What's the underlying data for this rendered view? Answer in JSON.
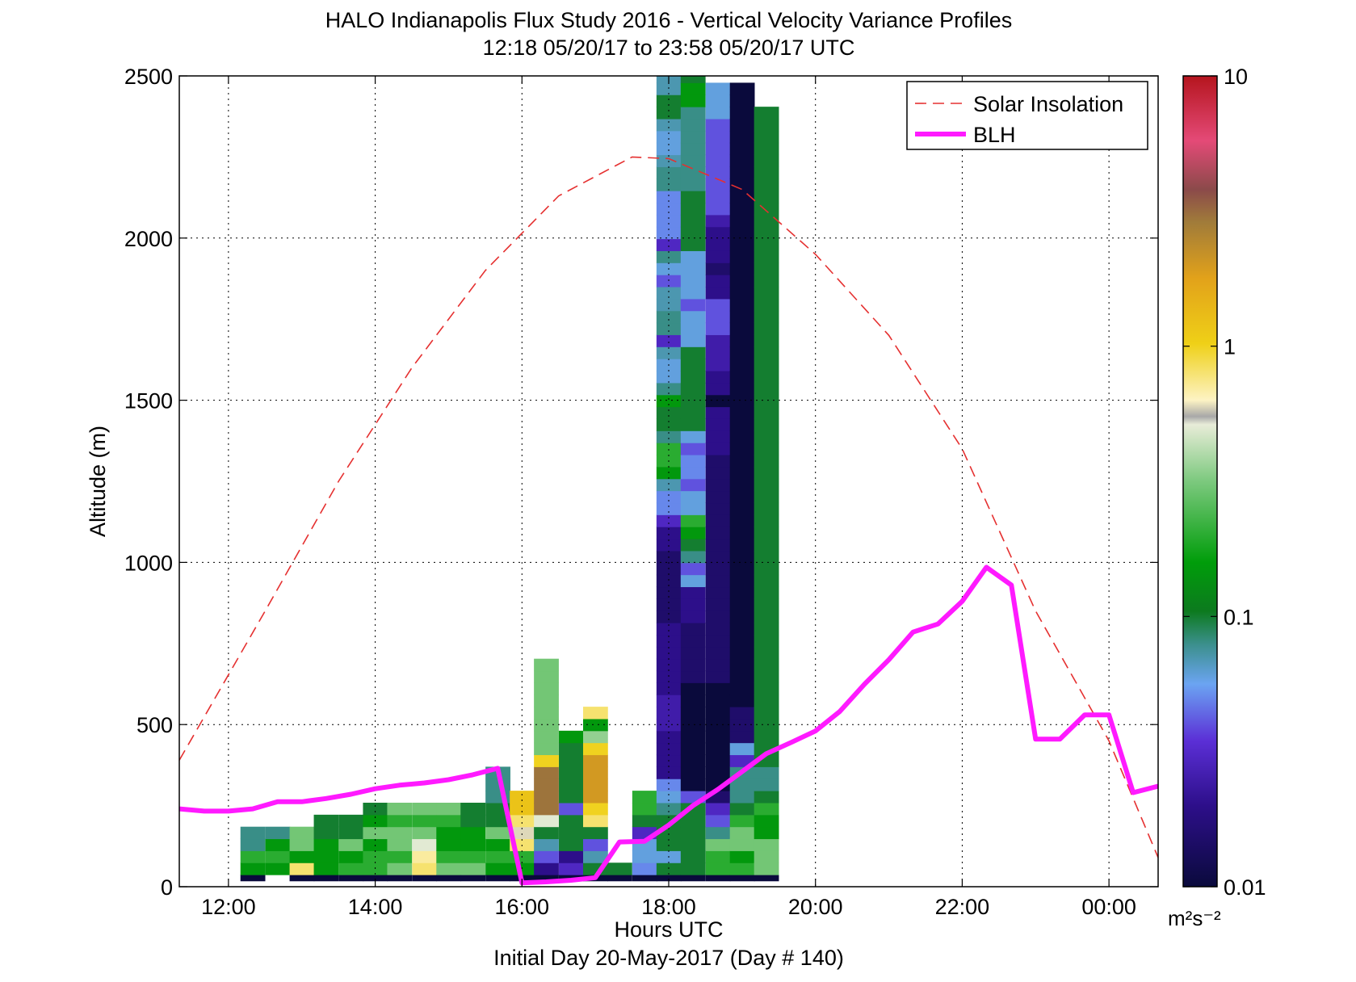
{
  "title_line1": "HALO Indianapolis Flux Study 2016 - Vertical Velocity Variance Profiles",
  "title_line2": "12:18 05/20/17 to 23:58 05/20/17  UTC",
  "xlabel": "Hours UTC",
  "xlabel2": "Initial Day 20-May-2017 (Day # 140)",
  "ylabel": "Altitude (m)",
  "colorbar_unit": "m²s⁻²",
  "legend": {
    "solar": "Solar Insolation",
    "blh": "BLH"
  },
  "chart_data": {
    "type": "heatmap",
    "x_range_hours": [
      11.33,
      24.67
    ],
    "y_range_m": [
      0,
      2500
    ],
    "x_ticks": [
      {
        "v": 12,
        "label": "12:00"
      },
      {
        "v": 14,
        "label": "14:00"
      },
      {
        "v": 16,
        "label": "16:00"
      },
      {
        "v": 18,
        "label": "18:00"
      },
      {
        "v": 20,
        "label": "20:00"
      },
      {
        "v": 22,
        "label": "22:00"
      },
      {
        "v": 24,
        "label": "00:00"
      }
    ],
    "y_ticks": [
      {
        "v": 0,
        "label": "0"
      },
      {
        "v": 500,
        "label": "500"
      },
      {
        "v": 1000,
        "label": "1000"
      },
      {
        "v": 1500,
        "label": "1500"
      },
      {
        "v": 2000,
        "label": "2000"
      },
      {
        "v": 2500,
        "label": "2500"
      }
    ],
    "grid": true,
    "legend_position": "top-right",
    "colorbar": {
      "scale": "log",
      "min": 0.01,
      "max": 10,
      "ticks": [
        {
          "v": 0.01,
          "label": "0.01"
        },
        {
          "v": 0.1,
          "label": "0.1"
        },
        {
          "v": 1,
          "label": "1"
        },
        {
          "v": 10,
          "label": "10"
        }
      ]
    },
    "variance_columns": [
      {
        "t": 12.33,
        "v": [
          0.01,
          0.15,
          0.2,
          0.08,
          0.08
        ]
      },
      {
        "t": 12.67,
        "v": [
          null,
          0.15,
          0.2,
          0.15,
          0.08
        ]
      },
      {
        "t": 13.0,
        "v": [
          0.01,
          0.8,
          0.15,
          0.3,
          0.3
        ]
      },
      {
        "t": 13.33,
        "v": [
          0.01,
          0.15,
          0.15,
          0.15,
          0.1,
          0.1
        ]
      },
      {
        "t": 13.67,
        "v": [
          0.01,
          0.2,
          0.15,
          0.3,
          0.1,
          0.1
        ]
      },
      {
        "t": 14.0,
        "v": [
          0.01,
          0.2,
          0.2,
          0.15,
          0.3,
          0.15,
          0.1
        ]
      },
      {
        "t": 14.33,
        "v": [
          0.01,
          0.3,
          0.2,
          0.3,
          0.3,
          0.2,
          0.3
        ]
      },
      {
        "t": 14.67,
        "v": [
          0.01,
          0.8,
          0.7,
          0.5,
          0.3,
          0.2,
          0.3
        ]
      },
      {
        "t": 15.0,
        "v": [
          0.01,
          0.3,
          0.2,
          0.15,
          0.15,
          0.2,
          0.3
        ]
      },
      {
        "t": 15.33,
        "v": [
          0.01,
          0.3,
          0.2,
          0.15,
          0.15,
          0.1,
          0.1
        ]
      },
      {
        "t": 15.67,
        "v": [
          0.01,
          0.15,
          0.2,
          0.15,
          0.3,
          0.1,
          0.1,
          0.08,
          0.08,
          0.08
        ]
      },
      {
        "t": 16.0,
        "v": [
          0.01,
          0.15,
          0.2,
          0.8,
          0.6,
          0.8,
          1.2,
          1.2
        ]
      },
      {
        "t": 16.33,
        "v": [
          0.01,
          0.02,
          0.04,
          0.07,
          0.1,
          0.5,
          3,
          3,
          3,
          3,
          1,
          0.3,
          0.3,
          0.3,
          0.3,
          0.3,
          0.3,
          0.3,
          0.3
        ]
      },
      {
        "t": 16.67,
        "v": [
          0.01,
          0.03,
          0.02,
          0.1,
          0.1,
          0.1,
          0.04,
          0.1,
          0.1,
          0.1,
          0.1,
          0.1,
          0.15
        ]
      },
      {
        "t": 17.0,
        "v": [
          0.01,
          0.1,
          0.07,
          0.04,
          0.1,
          0.8,
          1,
          2,
          2,
          2,
          2,
          1,
          0.35,
          0.15,
          0.8
        ]
      },
      {
        "t": 17.33,
        "v": [
          0.01,
          0.1
        ]
      },
      {
        "t": 17.67,
        "v": [
          0.01,
          0.05,
          0.06,
          0.06,
          0.03,
          0.1,
          0.2,
          0.2
        ]
      },
      {
        "t": 18.0,
        "v": [
          0.01,
          0.1,
          0.06,
          0.1,
          0.1,
          0.1,
          0.08,
          0.06,
          0.05,
          0.02,
          0.02,
          0.02,
          0.02,
          0.025,
          0.025,
          0.025,
          0.02,
          0.02,
          0.02,
          0.02,
          0.02,
          0.02,
          0.015,
          0.015,
          0.015,
          0.015,
          0.015,
          0.015,
          0.02,
          0.02,
          0.03,
          0.05,
          0.05,
          0.07,
          0.15,
          0.2,
          0.2,
          0.08,
          0.1,
          0.1,
          0.15,
          0.08,
          0.06,
          0.06,
          0.07,
          0.03,
          0.08,
          0.08,
          0.07,
          0.07,
          0.04,
          0.06,
          0.08,
          0.03,
          0.05,
          0.05,
          0.05,
          0.05,
          0.08,
          0.08,
          0.07,
          0.06,
          0.06,
          0.07,
          0.1,
          0.1,
          0.07,
          0.07
        ]
      },
      {
        "t": 18.33,
        "v": [
          0.01,
          0.1,
          0.1,
          0.1,
          0.1,
          0.1,
          0.1,
          0.04,
          0.01,
          0.01,
          0.01,
          0.01,
          0.01,
          0.01,
          0.01,
          0.01,
          0.01,
          0.015,
          0.015,
          0.015,
          0.015,
          0.015,
          0.02,
          0.02,
          0.02,
          0.06,
          0.04,
          0.08,
          0.1,
          0.15,
          0.2,
          0.06,
          0.06,
          0.04,
          0.05,
          0.05,
          0.04,
          0.06,
          0.1,
          0.1,
          0.1,
          0.1,
          0.1,
          0.1,
          0.1,
          0.06,
          0.06,
          0.06,
          0.04,
          0.06,
          0.06,
          0.06,
          0.06,
          0.1,
          0.1,
          0.1,
          0.1,
          0.1,
          0.08,
          0.08,
          0.08,
          0.08,
          0.08,
          0.08,
          0.08,
          0.15,
          0.15,
          0.1
        ]
      },
      {
        "t": 18.67,
        "v": [
          0.01,
          0.2,
          0.2,
          0.3,
          0.08,
          0.04,
          0.03,
          0.015,
          0.01,
          0.01,
          0.01,
          0.01,
          0.01,
          0.01,
          0.01,
          0.01,
          0.01,
          0.015,
          0.015,
          0.015,
          0.015,
          0.015,
          0.015,
          0.015,
          0.015,
          0.015,
          0.015,
          0.015,
          0.015,
          0.015,
          0.015,
          0.015,
          0.015,
          0.015,
          0.015,
          0.015,
          0.02,
          0.02,
          0.02,
          0.02,
          0.01,
          0.02,
          0.02,
          0.025,
          0.025,
          0.025,
          0.04,
          0.04,
          0.04,
          0.02,
          0.02,
          0.015,
          0.02,
          0.02,
          0.02,
          0.025,
          0.04,
          0.04,
          0.04,
          0.04,
          0.04,
          0.04,
          0.04,
          0.04,
          0.06,
          0.06,
          0.06
        ]
      },
      {
        "t": 19.0,
        "v": [
          0.01,
          0.2,
          0.15,
          0.3,
          0.3,
          0.2,
          0.1,
          0.08,
          0.08,
          0.08,
          0.03,
          0.06,
          0.015,
          0.015,
          0.015,
          0.01,
          0.01,
          0.01,
          0.01,
          0.01,
          0.01,
          0.01,
          0.01,
          0.01,
          0.01,
          0.01,
          0.01,
          0.01,
          0.01,
          0.01,
          0.01,
          0.01,
          0.01,
          0.01,
          0.01,
          0.01,
          0.01,
          0.01,
          0.01,
          0.01,
          0.01,
          0.01,
          0.01,
          0.01,
          0.01,
          0.01,
          0.01,
          0.01,
          0.01,
          0.01,
          0.01,
          0.01,
          0.01,
          0.01,
          0.01,
          0.01,
          0.01,
          0.01,
          0.01,
          0.01,
          0.01,
          0.01,
          0.01,
          0.01,
          0.01,
          0.01,
          0.01
        ]
      },
      {
        "t": 19.33,
        "v": [
          0.01,
          0.3,
          0.3,
          0.3,
          0.15,
          0.15,
          0.2,
          0.1,
          0.08,
          0.08,
          0.1,
          0.1,
          0.1,
          0.1,
          0.1,
          0.1,
          0.1,
          0.1,
          0.1,
          0.1,
          0.1,
          0.1,
          0.1,
          0.1,
          0.1,
          0.1,
          0.1,
          0.1,
          0.1,
          0.1,
          0.1,
          0.1,
          0.1,
          0.1,
          0.1,
          0.1,
          0.1,
          0.1,
          0.1,
          0.1,
          0.1,
          0.1,
          0.1,
          0.1,
          0.1,
          0.1,
          0.1,
          0.1,
          0.1,
          0.1,
          0.1,
          0.1,
          0.1,
          0.1,
          0.1,
          0.1,
          0.1,
          0.1,
          0.1,
          0.1,
          0.1,
          0.1,
          0.1,
          0.1,
          0.1
        ]
      }
    ],
    "solar_insolation": [
      [
        11.33,
        390
      ],
      [
        12.5,
        850
      ],
      [
        13.5,
        1250
      ],
      [
        14.5,
        1600
      ],
      [
        15.5,
        1900
      ],
      [
        16.5,
        2130
      ],
      [
        17.5,
        2250
      ],
      [
        18.0,
        2245
      ],
      [
        19.0,
        2150
      ],
      [
        20.0,
        1950
      ],
      [
        21.0,
        1700
      ],
      [
        22.0,
        1350
      ],
      [
        23.0,
        850
      ],
      [
        24.0,
        450
      ],
      [
        24.67,
        90
      ]
    ],
    "blh": [
      [
        11.33,
        240
      ],
      [
        11.67,
        233
      ],
      [
        12.0,
        233
      ],
      [
        12.33,
        240
      ],
      [
        12.67,
        262
      ],
      [
        13.0,
        262
      ],
      [
        13.33,
        272
      ],
      [
        13.67,
        285
      ],
      [
        14.0,
        302
      ],
      [
        14.33,
        313
      ],
      [
        14.67,
        320
      ],
      [
        15.0,
        330
      ],
      [
        15.33,
        345
      ],
      [
        15.67,
        365
      ],
      [
        16.0,
        12
      ],
      [
        16.33,
        15
      ],
      [
        16.67,
        20
      ],
      [
        17.0,
        28
      ],
      [
        17.33,
        138
      ],
      [
        17.67,
        140
      ],
      [
        18.0,
        190
      ],
      [
        18.33,
        250
      ],
      [
        18.67,
        300
      ],
      [
        19.0,
        355
      ],
      [
        19.33,
        410
      ],
      [
        19.67,
        445
      ],
      [
        20.0,
        480
      ],
      [
        20.33,
        540
      ],
      [
        20.67,
        625
      ],
      [
        21.0,
        700
      ],
      [
        21.33,
        785
      ],
      [
        21.67,
        810
      ],
      [
        22.0,
        880
      ],
      [
        22.33,
        985
      ],
      [
        22.67,
        930
      ],
      [
        23.0,
        455
      ],
      [
        23.33,
        455
      ],
      [
        23.67,
        530
      ],
      [
        24.0,
        530
      ],
      [
        24.33,
        290
      ],
      [
        24.67,
        310
      ]
    ]
  }
}
